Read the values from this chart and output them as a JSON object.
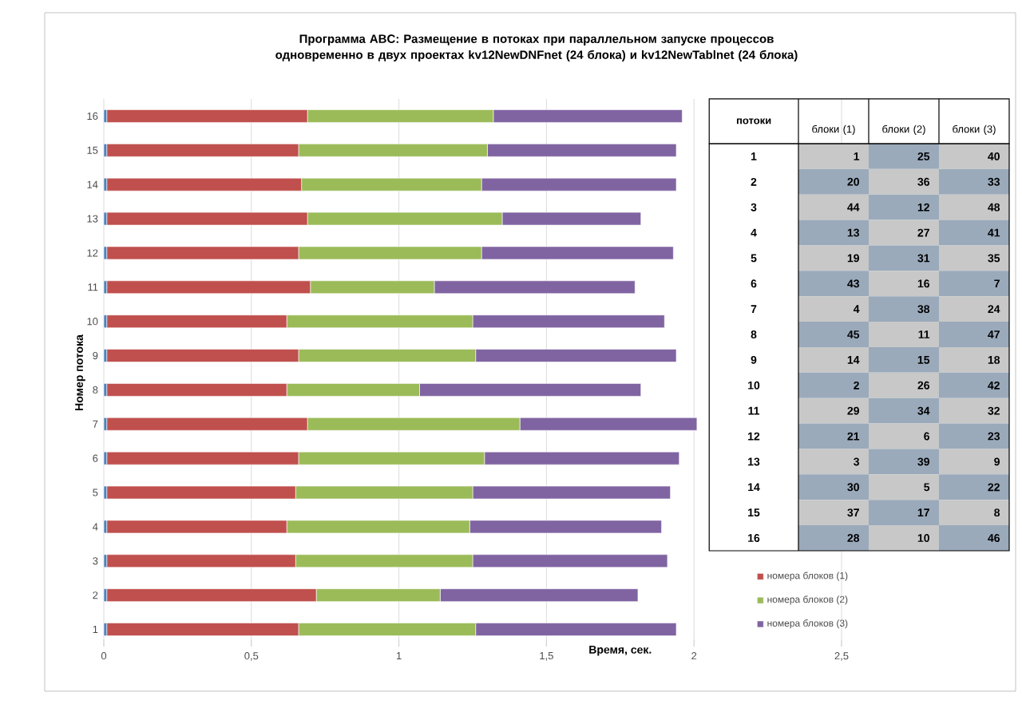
{
  "chart_data": [
    {
      "type": "bar",
      "orientation": "horizontal",
      "stacked": true,
      "title": "Программа ABC: Размещение  в потоках при параллельном запуске  процессов одновременно в двух проектах    kv12NewDNFnet (24  блока) и   kv12NewTablnet (24 **блока)**",
      "xlabel": "Время, сек.",
      "ylabel": "Номер потока",
      "categories": [
        "16",
        "15",
        "14",
        "13",
        "12",
        "11",
        "10",
        "9",
        "8",
        "7",
        "6",
        "5",
        "4",
        "3",
        "2",
        "1"
      ],
      "series": [
        {
          "color": "#4f81bd",
          "values": [
            0.01,
            0.01,
            0.01,
            0.01,
            0.01,
            0.01,
            0.01,
            0.01,
            0.01,
            0.01,
            0.01,
            0.01,
            0.01,
            0.01,
            0.01,
            0.01
          ]
        },
        {
          "name": "номера блоков (1)",
          "color": "#c0504d",
          "values": [
            0.68,
            0.65,
            0.66,
            0.68,
            0.65,
            0.69,
            0.61,
            0.65,
            0.61,
            0.68,
            0.65,
            0.64,
            0.61,
            0.64,
            0.71,
            0.65
          ]
        },
        {
          "name": "номера блоков (2)",
          "color": "#9bbb59",
          "values": [
            0.63,
            0.64,
            0.61,
            0.66,
            0.62,
            0.42,
            0.63,
            0.6,
            0.45,
            0.72,
            0.63,
            0.6,
            0.62,
            0.6,
            0.42,
            0.6
          ]
        },
        {
          "name": "номера блоков (3)",
          "color": "#8064a2",
          "values": [
            0.64,
            0.64,
            0.66,
            0.47,
            0.65,
            0.68,
            0.65,
            0.68,
            0.75,
            0.6,
            0.66,
            0.67,
            0.65,
            0.66,
            0.67,
            0.68
          ]
        }
      ],
      "xlim": [
        0,
        2.5
      ],
      "xticks": [
        0,
        {
          "value": 0.5,
          "label": "0,5"
        },
        1,
        {
          "value": 1.5,
          "label": "1,5"
        },
        2,
        {
          "value": 2.5,
          "label": "2,5"
        }
      ],
      "grid": "x",
      "legend": "bottom right"
    },
    {
      "type": "heatmap",
      "ylabel": "потоки",
      "data_labels": true,
      "categories": [
        "блоки (1)",
        "блоки (2)",
        "блоки (3)"
      ],
      "y_categories": [
        "1",
        "2",
        "3",
        "4",
        "5",
        "6",
        "7",
        "8",
        "9",
        "10",
        "11",
        "12",
        "13",
        "14",
        "15",
        "16"
      ],
      "cells": [
        [
          1,
          25,
          40
        ],
        [
          20,
          36,
          33
        ],
        [
          44,
          12,
          48
        ],
        [
          13,
          27,
          41
        ],
        [
          19,
          31,
          35
        ],
        [
          43,
          16,
          7
        ],
        [
          4,
          38,
          24
        ],
        [
          45,
          11,
          47
        ],
        [
          14,
          15,
          18
        ],
        [
          2,
          26,
          42
        ],
        [
          29,
          34,
          32
        ],
        [
          21,
          6,
          23
        ],
        [
          3,
          39,
          9
        ],
        [
          30,
          5,
          22
        ],
        [
          37,
          17,
          8
        ],
        [
          28,
          10,
          46
        ]
      ]
    }
  ]
}
